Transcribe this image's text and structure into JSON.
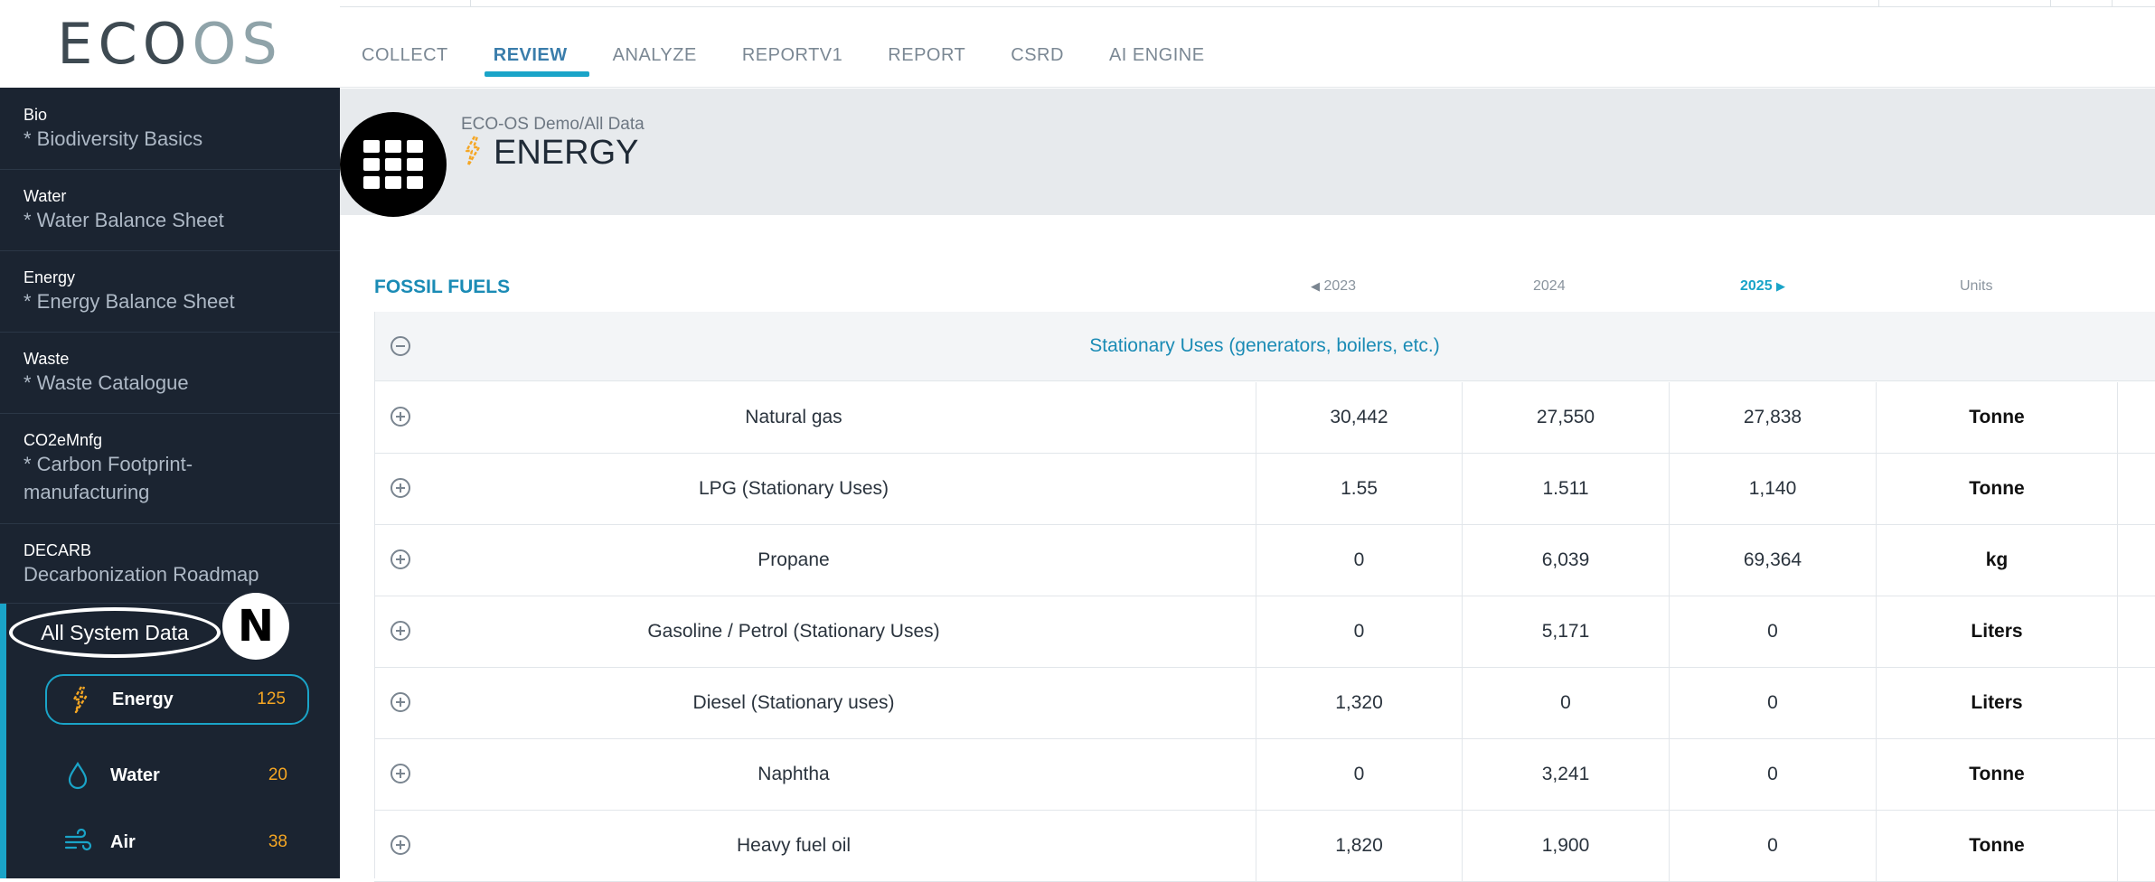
{
  "brand": {
    "logo_text": "ECOOS"
  },
  "sidebar": {
    "items": [
      {
        "category": "Bio",
        "title": "* Biodiversity Basics"
      },
      {
        "category": "Water",
        "title": "* Water Balance Sheet"
      },
      {
        "category": "Energy",
        "title": "* Energy Balance Sheet"
      },
      {
        "category": "Waste",
        "title": "* Waste Catalogue"
      },
      {
        "category": "CO2eMnfg",
        "title": "* Carbon Footprint-manufacturing"
      },
      {
        "category": "DECARB",
        "title": "Decarbonization Roadmap"
      }
    ],
    "all_system_label": "All System Data",
    "n_badge": "N",
    "sub_items": [
      {
        "label": "Energy",
        "count": "125",
        "icon": "lightning-icon"
      },
      {
        "label": "Water",
        "count": "20",
        "icon": "water-drop-icon"
      },
      {
        "label": "Air",
        "count": "38",
        "icon": "wind-icon"
      }
    ]
  },
  "tabs": [
    "COLLECT",
    "REVIEW",
    "ANALYZE",
    "REPORTV1",
    "REPORT",
    "CSRD",
    "AI ENGINE"
  ],
  "active_tab": "REVIEW",
  "header": {
    "breadcrumb": "ECO-OS Demo/All Data",
    "title": "ENERGY"
  },
  "table": {
    "section_title": "FOSSIL FUELS",
    "years": [
      "2023",
      "2024",
      "2025"
    ],
    "units_label": "Units",
    "group_label": "Stationary Uses (generators, boilers, etc.)",
    "rows": [
      {
        "name": "Natural gas",
        "v2023": "30,442",
        "v2024": "27,550",
        "v2025": "27,838",
        "unit": "Tonne"
      },
      {
        "name": "LPG (Stationary Uses)",
        "v2023": "1.55",
        "v2024": "1.511",
        "v2025": "1,140",
        "unit": "Tonne"
      },
      {
        "name": "Propane",
        "v2023": "0",
        "v2024": "6,039",
        "v2025": "69,364",
        "unit": "kg"
      },
      {
        "name": "Gasoline / Petrol (Stationary Uses)",
        "v2023": "0",
        "v2024": "5,171",
        "v2025": "0",
        "unit": "Liters"
      },
      {
        "name": "Diesel (Stationary uses)",
        "v2023": "1,320",
        "v2024": "0",
        "v2025": "0",
        "unit": "Liters"
      },
      {
        "name": "Naphtha",
        "v2023": "0",
        "v2024": "3,241",
        "v2025": "0",
        "unit": "Tonne"
      },
      {
        "name": "Heavy fuel oil",
        "v2023": "1,820",
        "v2024": "1,900",
        "v2025": "0",
        "unit": "Tonne"
      }
    ]
  },
  "colors": {
    "sidebar_bg": "#1b2431",
    "accent": "#1aa4c8",
    "count": "#f5a623",
    "header_band": "#e7eaed"
  }
}
